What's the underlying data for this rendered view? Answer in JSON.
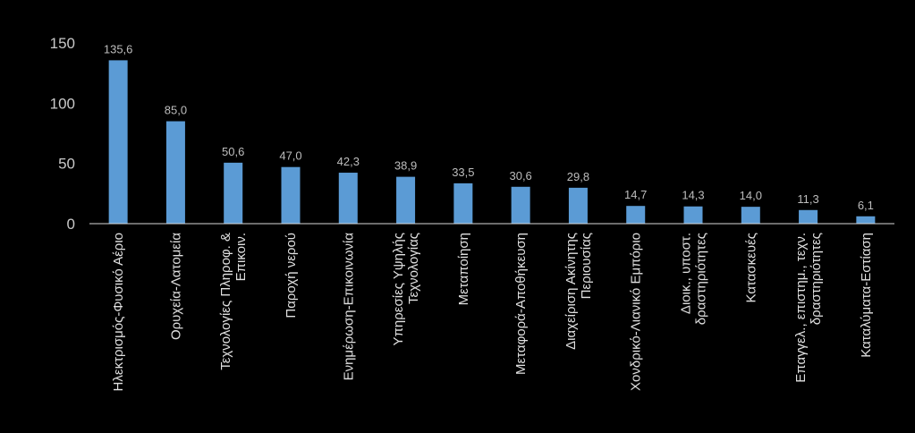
{
  "chart_data": {
    "type": "bar",
    "categories": [
      [
        "Ηλεκτρισμός-Φυσικό Αέριο"
      ],
      [
        "Ορυχεία-Λατομεία"
      ],
      [
        "Τεχνολογίες Πληροφ. &",
        "Επικοιν."
      ],
      [
        "Παροχή νερού"
      ],
      [
        "Ενημέρωση-Επικοινωνία"
      ],
      [
        "Υπηρεσίες Υψηλής",
        "Τεχνολογίας"
      ],
      [
        "Μεταποίηση"
      ],
      [
        "Μεταφορά-Αποθήκευση"
      ],
      [
        "Διαχείριση Ακίνητης",
        "Περιουσίας"
      ],
      [
        "Χονδρικό-Λιανικό Εμπόριο"
      ],
      [
        "Διοικ., υποστ.",
        "δραστηριότητες"
      ],
      [
        "Κατασκευές"
      ],
      [
        "Επαγγελ., επιστημ., τεχν.",
        "δραστηριότητες"
      ],
      [
        "Καταλύματα-Εστίαση"
      ]
    ],
    "values": [
      135.6,
      85.0,
      50.6,
      47.0,
      42.3,
      38.9,
      33.5,
      30.6,
      29.8,
      14.7,
      14.3,
      14.0,
      11.3,
      6.1
    ],
    "data_labels": [
      "135,6",
      "85,0",
      "50,6",
      "47,0",
      "42,3",
      "38,9",
      "33,5",
      "30,6",
      "29,8",
      "14,7",
      "14,3",
      "14,0",
      "11,3",
      "6,1"
    ],
    "yticks": [
      0,
      50,
      100,
      150
    ],
    "ylim": [
      0,
      150
    ],
    "grid": false,
    "bar_color": "#5b9bd5",
    "axis_color": "#d9d9d9"
  }
}
